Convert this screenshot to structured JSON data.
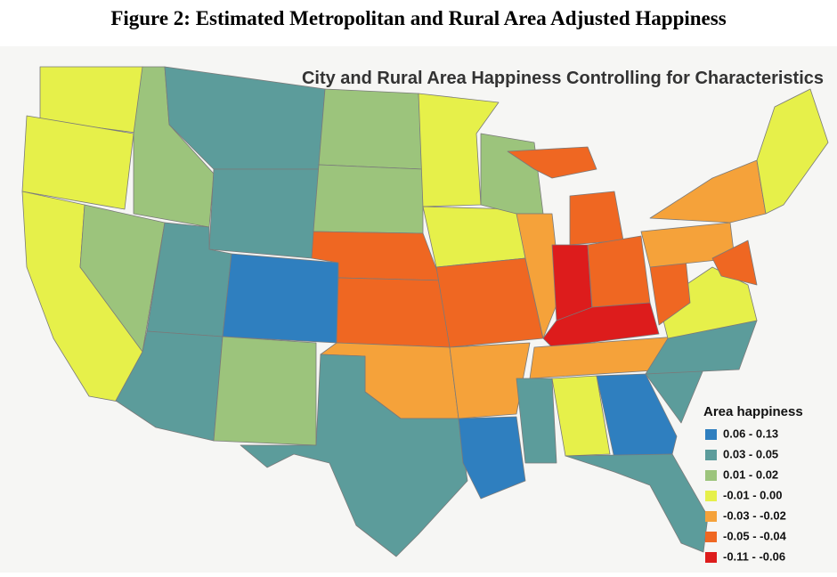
{
  "figure_title": "Figure 2: Estimated Metropolitan and Rural Area Adjusted Happiness",
  "map": {
    "title": "City and Rural Area Happiness Controlling for Characteristics",
    "legend": {
      "title": "Area happiness",
      "items": [
        {
          "label": "0.06 - 0.13",
          "color": "#2f7fbf"
        },
        {
          "label": "0.03 - 0.05",
          "color": "#5c9c9b"
        },
        {
          "label": "0.01 - 0.02",
          "color": "#9cc47c"
        },
        {
          "label": "-0.01 - 0.00",
          "color": "#e6f04a"
        },
        {
          "label": "-0.03 - -0.02",
          "color": "#f5a23a"
        },
        {
          "label": "-0.05 - -0.04",
          "color": "#ef6722"
        },
        {
          "label": "-0.11 - -0.06",
          "color": "#dd1c1c"
        }
      ]
    }
  }
}
